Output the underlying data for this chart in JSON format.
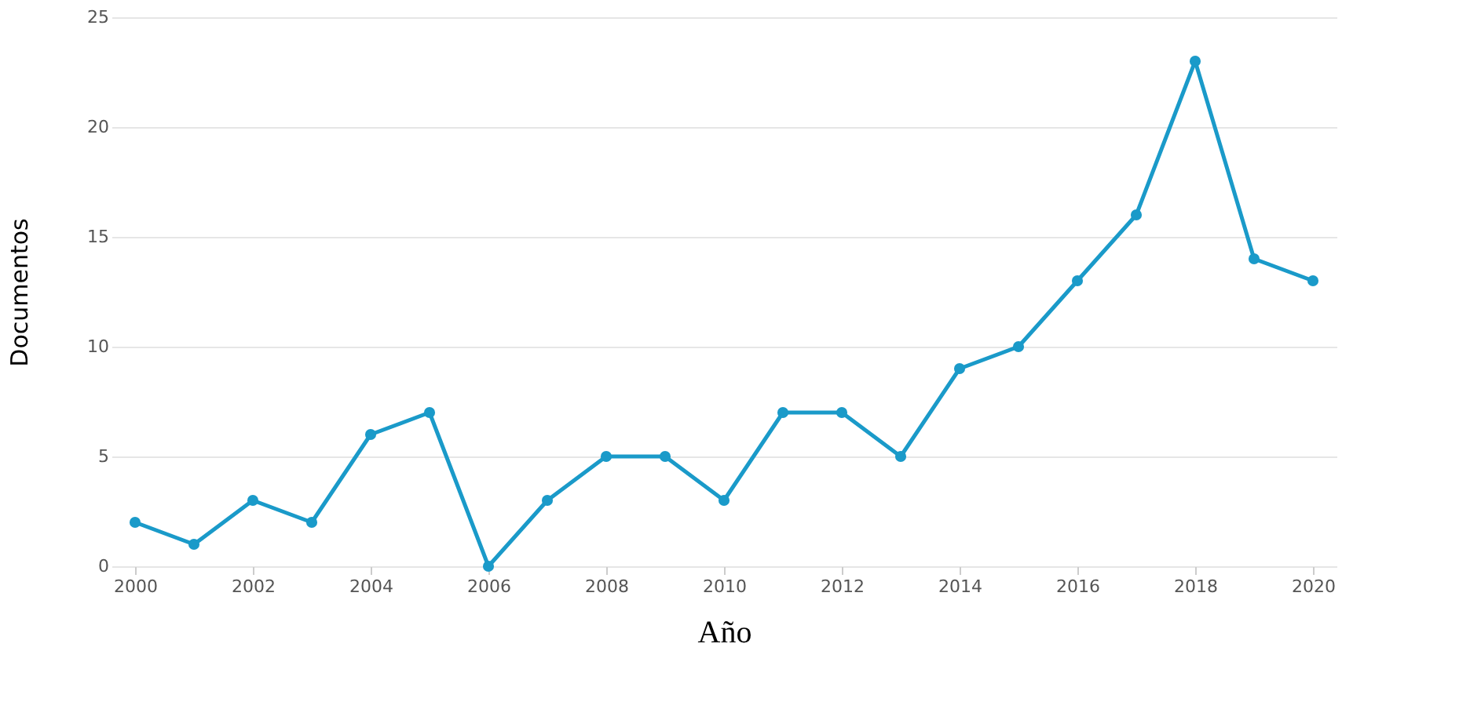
{
  "chart_data": {
    "type": "line",
    "xlabel": "Año",
    "ylabel": "Documentos",
    "x": [
      2000,
      2001,
      2002,
      2003,
      2004,
      2005,
      2006,
      2007,
      2008,
      2009,
      2010,
      2011,
      2012,
      2013,
      2014,
      2015,
      2016,
      2017,
      2018,
      2019,
      2020
    ],
    "series": [
      {
        "color": "#1a9ac9",
        "values": [
          2,
          1,
          3,
          2,
          6,
          7,
          0,
          3,
          5,
          5,
          3,
          7,
          7,
          5,
          9,
          10,
          13,
          16,
          23,
          14,
          13
        ]
      }
    ],
    "xlim": [
      1999.6,
      2020.4
    ],
    "xticks": [
      2000,
      2002,
      2004,
      2006,
      2008,
      2010,
      2012,
      2014,
      2016,
      2018,
      2020
    ],
    "ylim": [
      0,
      25
    ],
    "yticks": [
      0,
      5,
      10,
      15,
      20,
      25
    ],
    "grid": "y",
    "marker": "circle",
    "line_style": "solid"
  }
}
